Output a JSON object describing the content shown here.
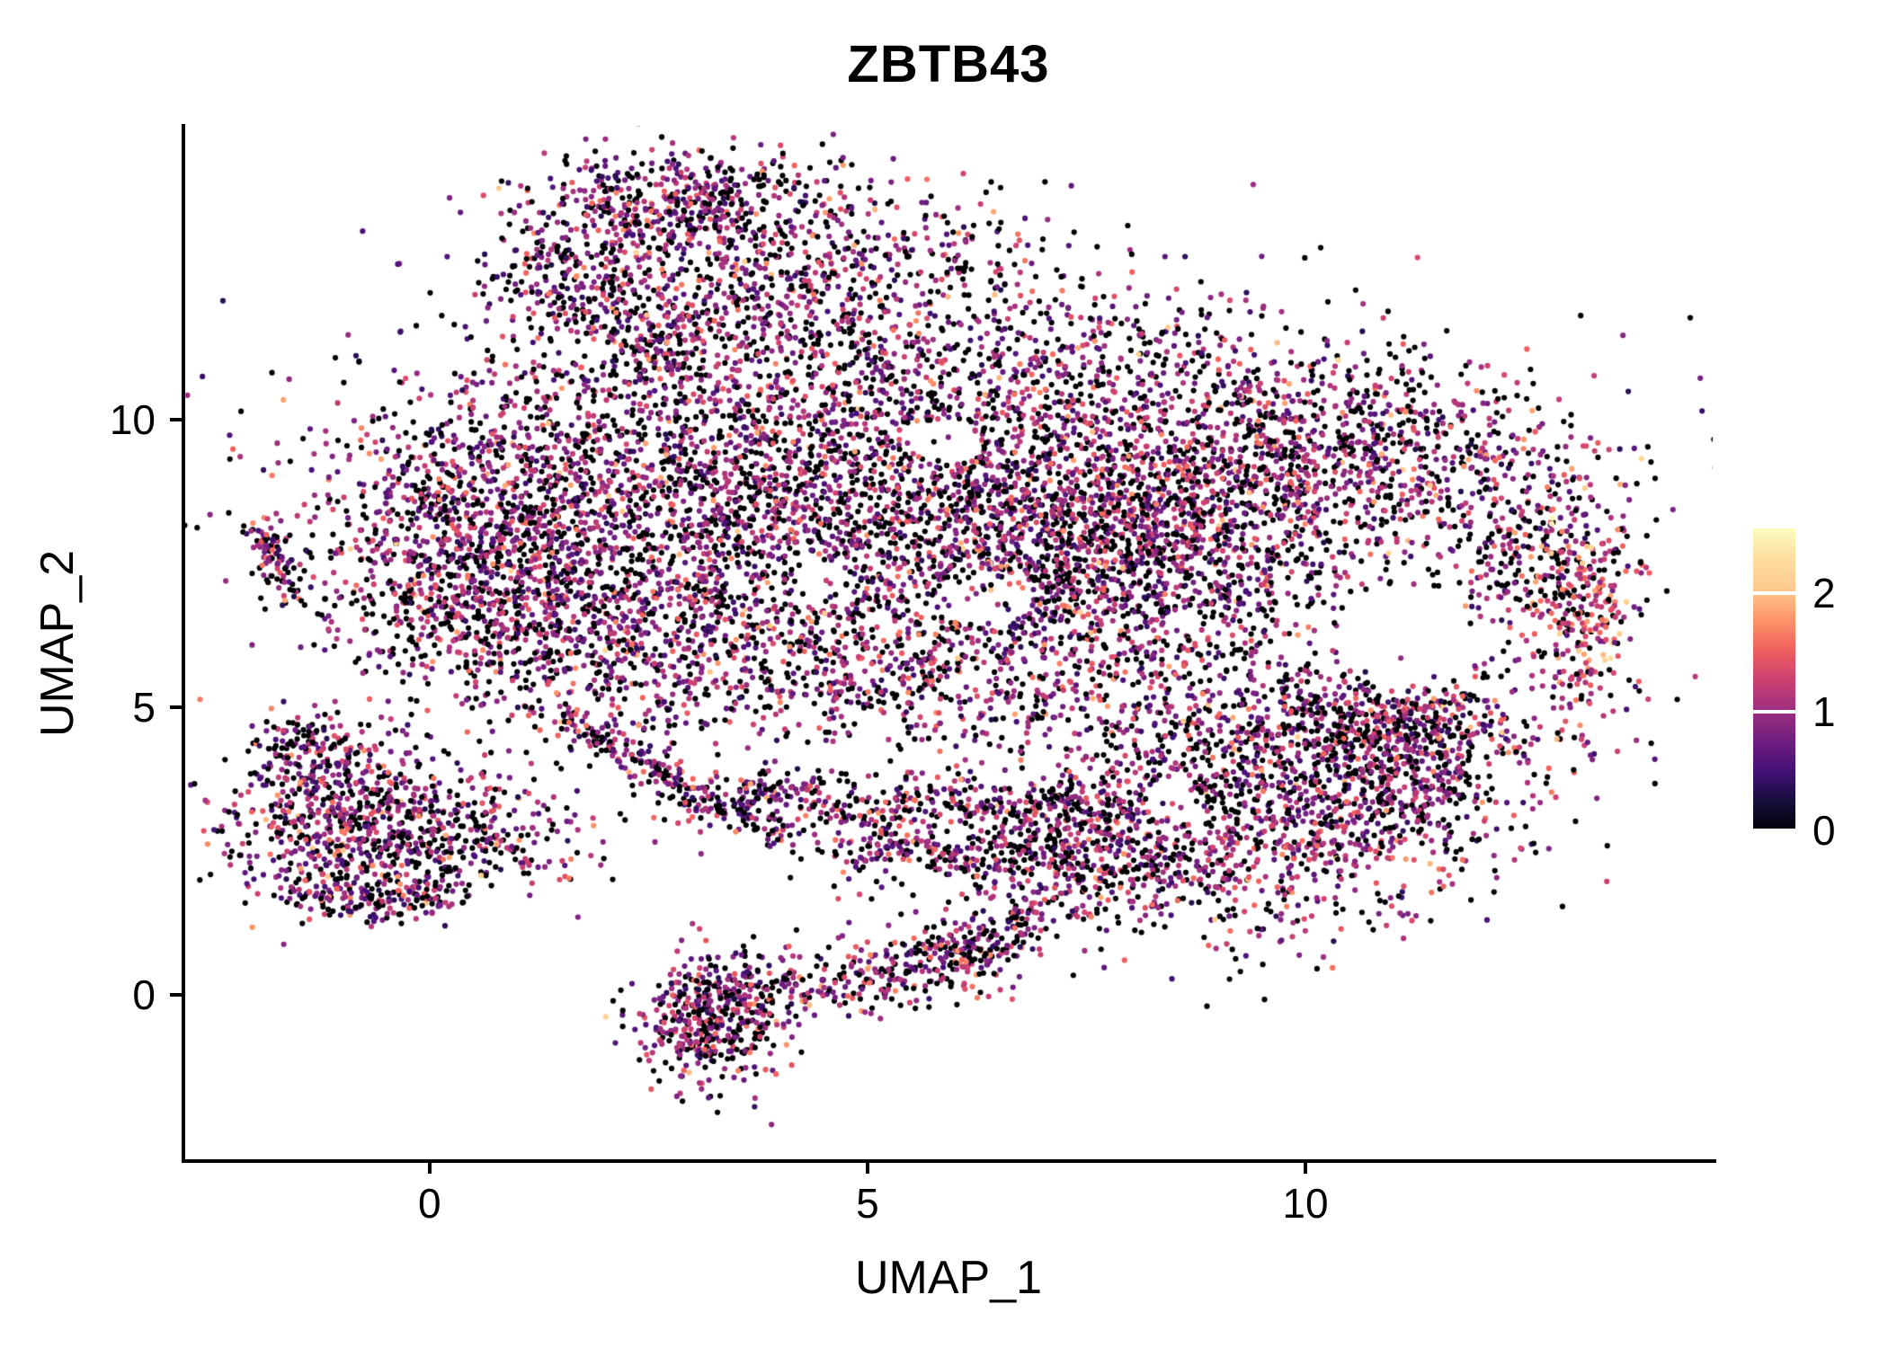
{
  "chart_data": {
    "type": "scatter",
    "title": "ZBTB43",
    "xlabel": "UMAP_1",
    "ylabel": "UMAP_2",
    "x_ticks": [
      0,
      5,
      10
    ],
    "y_ticks": [
      0,
      5,
      10
    ],
    "x_range": [
      -2.8,
      14.65
    ],
    "y_range": [
      -2.85,
      15.1
    ],
    "background": "#ffffff",
    "axis_color": "#000000",
    "point_radius": 3.1,
    "seed": 7,
    "colorbar": {
      "ticks": [
        0,
        1,
        2
      ],
      "range": [
        0,
        2.55
      ],
      "colormap": "magma",
      "stops": [
        "#000004",
        "#180f3e",
        "#451077",
        "#721f81",
        "#9f2f7f",
        "#cd4071",
        "#f1605d",
        "#fd9668",
        "#feca8d",
        "#fddea0",
        "#fcfdbf"
      ]
    },
    "expression": {
      "p_zero": 0.37,
      "base": 0.25,
      "uniform": 0.9,
      "tail": 1.2
    },
    "clusters": [
      {
        "cx": 3.0,
        "cy": 13.8,
        "sx": 0.95,
        "sy": 0.45,
        "n": 520
      },
      {
        "cx": 1.7,
        "cy": 12.5,
        "sx": 0.6,
        "sy": 0.55,
        "n": 260
      },
      {
        "cx": 3.6,
        "cy": 12.4,
        "sx": 1.0,
        "sy": 0.6,
        "n": 300
      },
      {
        "cx": 5.6,
        "cy": 12.9,
        "sx": 0.9,
        "sy": 0.55,
        "n": 170
      },
      {
        "cx": 4.3,
        "cy": 11.4,
        "sx": 1.3,
        "sy": 0.7,
        "n": 260
      },
      {
        "cx": 7.4,
        "cy": 11.0,
        "sx": 1.5,
        "sy": 0.7,
        "n": 300
      },
      {
        "cx": 2.6,
        "cy": 8.6,
        "sx": 1.9,
        "sy": 1.5,
        "n": 2100
      },
      {
        "cx": 0.5,
        "cy": 7.7,
        "sx": 0.8,
        "sy": 1.1,
        "n": 620
      },
      {
        "cx": 1.6,
        "cy": 6.2,
        "sx": 1.2,
        "sy": 0.8,
        "n": 520
      },
      {
        "cx": 5.2,
        "cy": 8.4,
        "sx": 1.5,
        "sy": 1.6,
        "n": 1000
      },
      {
        "cx": 8.3,
        "cy": 8.4,
        "sx": 1.7,
        "sy": 1.4,
        "n": 1800
      },
      {
        "cx": 7.6,
        "cy": 7.5,
        "sx": 1.0,
        "sy": 1.0,
        "n": 560
      },
      {
        "cx": 10.7,
        "cy": 9.6,
        "sx": 1.35,
        "sy": 0.75,
        "n": 520
      },
      {
        "cx": 12.6,
        "cy": 7.6,
        "sx": 0.6,
        "sy": 1.0,
        "n": 330
      },
      {
        "cx": 13.2,
        "cy": 6.7,
        "sx": 0.25,
        "sy": 0.85,
        "n": 200,
        "bias": 0.45
      },
      {
        "cx": 10.9,
        "cy": 4.9,
        "sx": 1.2,
        "sy": 0.5,
        "n": 420
      },
      {
        "cx": 5.0,
        "cy": 5.5,
        "sx": 1.7,
        "sy": 0.6,
        "n": 460
      },
      {
        "cx": 6.5,
        "cy": 8.5,
        "sx": 3.2,
        "sy": 2.0,
        "n": 650
      },
      {
        "cx": -0.75,
        "cy": 2.95,
        "sx": 0.8,
        "sy": 0.7,
        "n": 800
      },
      {
        "cx": -1.35,
        "cy": 4.25,
        "sx": 0.35,
        "sy": 0.35,
        "n": 140
      },
      {
        "cx": 0.9,
        "cy": 2.7,
        "sx": 0.5,
        "sy": 0.45,
        "n": 110
      },
      {
        "cx": 9.3,
        "cy": 3.0,
        "sx": 1.4,
        "sy": 0.95,
        "n": 1150
      },
      {
        "cx": 7.35,
        "cy": 2.3,
        "sx": 0.7,
        "sy": 0.55,
        "n": 260
      },
      {
        "cx": 11.2,
        "cy": 3.9,
        "sx": 0.75,
        "sy": 0.65,
        "n": 360
      },
      {
        "cx": 8.6,
        "cy": 4.6,
        "sx": 1.3,
        "sy": 0.5,
        "n": 170
      },
      {
        "cx": 3.2,
        "cy": -0.6,
        "sx": 0.45,
        "sy": 0.5,
        "n": 360
      },
      {
        "cx": 6.1,
        "cy": 0.85,
        "sx": 0.4,
        "sy": 0.3,
        "n": 80
      },
      {
        "cx": 5.0,
        "cy": 3.1,
        "sx": 2.0,
        "sy": 0.8,
        "n": 120
      }
    ],
    "strands": [
      {
        "pts": [
          [
            -1.95,
            8.1
          ],
          [
            -1.8,
            7.4
          ],
          [
            -1.5,
            6.85
          ]
        ],
        "n": 90,
        "j": 0.12
      },
      {
        "pts": [
          [
            -1.5,
            1.9
          ],
          [
            -0.6,
            1.55
          ],
          [
            0.3,
            1.75
          ]
        ],
        "n": 150,
        "j": 0.18
      },
      {
        "pts": [
          [
            1.5,
            4.9
          ],
          [
            2.3,
            4.2
          ],
          [
            3.1,
            3.3
          ],
          [
            4.0,
            2.9
          ]
        ],
        "n": 250,
        "j": 0.17
      },
      {
        "pts": [
          [
            3.3,
            3.5
          ],
          [
            4.3,
            3.6
          ],
          [
            5.0,
            3.0
          ],
          [
            5.8,
            3.6
          ],
          [
            6.5,
            3.0
          ],
          [
            7.3,
            3.5
          ],
          [
            8.0,
            3.1
          ]
        ],
        "n": 360,
        "j": 0.2
      },
      {
        "pts": [
          [
            4.6,
            2.3
          ],
          [
            5.5,
            2.7
          ],
          [
            6.3,
            2.2
          ],
          [
            7.0,
            2.6
          ]
        ],
        "n": 170,
        "j": 0.16
      },
      {
        "pts": [
          [
            2.9,
            0.3
          ],
          [
            3.9,
            0.15
          ],
          [
            4.9,
            0.3
          ],
          [
            5.9,
            0.5
          ],
          [
            6.5,
            0.8
          ]
        ],
        "n": 400,
        "j": 0.3
      },
      {
        "pts": [
          [
            6.6,
            0.9
          ],
          [
            7.1,
            1.7
          ]
        ],
        "n": 60,
        "j": 0.2
      },
      {
        "pts": [
          [
            10.3,
            4.6
          ],
          [
            10.9,
            4.4
          ],
          [
            11.5,
            4.8
          ]
        ],
        "n": 90,
        "j": 0.25
      },
      {
        "pts": [
          [
            2.5,
            10.9
          ],
          [
            2.9,
            11.8
          ]
        ],
        "n": 70,
        "j": 0.25
      }
    ],
    "holes": [
      {
        "x": 11.15,
        "y": 6.2,
        "rx": 0.85,
        "ry": 0.9,
        "p": 0.93
      },
      {
        "x": 5.85,
        "y": 9.6,
        "rx": 0.45,
        "ry": 0.4,
        "p": 0.85
      },
      {
        "x": 6.4,
        "y": 6.9,
        "rx": 0.5,
        "ry": 0.5,
        "p": 0.8
      },
      {
        "x": 8.5,
        "y": 3.4,
        "rx": 0.3,
        "ry": 0.45,
        "p": 0.75
      },
      {
        "x": 4.4,
        "y": 7.3,
        "rx": 0.35,
        "ry": 0.35,
        "p": 0.7
      }
    ]
  }
}
